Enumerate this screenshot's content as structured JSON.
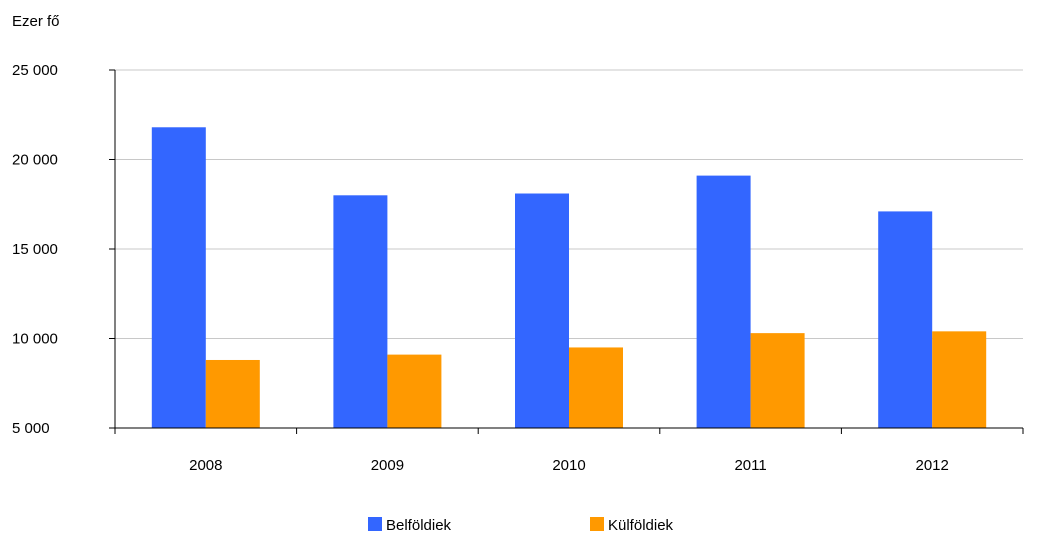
{
  "chart_data": {
    "type": "bar",
    "ylabel": "Ezer fő",
    "categories": [
      "2008",
      "2009",
      "2010",
      "2011",
      "2012"
    ],
    "series": [
      {
        "name": "Belföldiek",
        "color": "#3366ff",
        "values": [
          21800,
          18000,
          18100,
          19100,
          17100
        ]
      },
      {
        "name": "Külföldiek",
        "color": "#ff9900",
        "values": [
          8800,
          9100,
          9500,
          10300,
          10400
        ]
      }
    ],
    "ylim": [
      5000,
      25000
    ],
    "yticks": [
      5000,
      10000,
      15000,
      20000,
      25000
    ],
    "ytick_labels": [
      "5 000",
      "10 000",
      "15 000",
      "20 000",
      "25 000"
    ],
    "grid": true,
    "legend_position": "bottom"
  }
}
